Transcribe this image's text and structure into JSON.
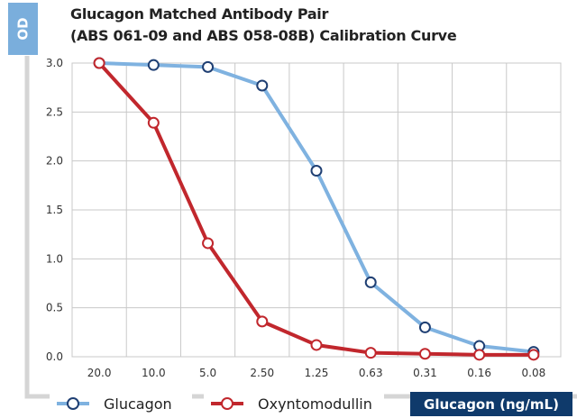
{
  "chart_data": {
    "type": "line",
    "title": "Glucagon Matched Antibody Pair",
    "subtitle": "(ABS 061-09 and ABS 058-08B) Calibration Curve",
    "ylabel": "OD",
    "xlabel": "Glucagon (ng/mL)",
    "categories": [
      "20.0",
      "10.0",
      "5.0",
      "2.50",
      "1.25",
      "0.63",
      "0.31",
      "0.16",
      "0.08"
    ],
    "ylim": [
      0,
      3.0
    ],
    "yticks": [
      "0.0",
      "0.5",
      "1.0",
      "1.5",
      "2.0",
      "2.5",
      "3.0"
    ],
    "grid": true,
    "legend_placement": "bottom",
    "series": [
      {
        "name": "Glucagon",
        "color": "#7fb2e0",
        "values": [
          3.0,
          2.98,
          2.96,
          2.77,
          1.9,
          0.76,
          0.3,
          0.11,
          0.05
        ]
      },
      {
        "name": "Oxyntomodullin",
        "color": "#c1272d",
        "values": [
          3.0,
          2.39,
          1.16,
          0.36,
          0.12,
          0.04,
          0.03,
          0.02,
          0.02
        ]
      }
    ]
  }
}
